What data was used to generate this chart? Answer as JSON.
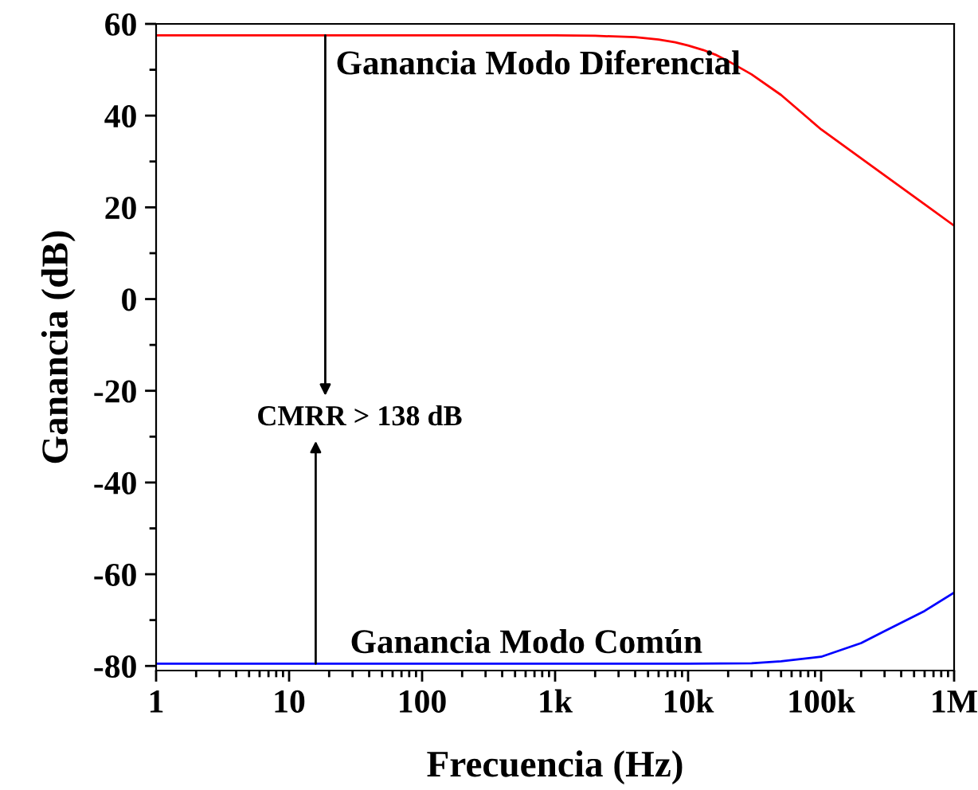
{
  "chart_data": {
    "type": "line",
    "xlabel": "Frecuencia (Hz)",
    "ylabel": "Ganancia (dB)",
    "log": "x",
    "xlim": [
      1,
      1000000
    ],
    "xticks": [
      {
        "value": 1,
        "label": "1"
      },
      {
        "value": 10,
        "label": "10"
      },
      {
        "value": 100,
        "label": "100"
      },
      {
        "value": 1000,
        "label": "1k"
      },
      {
        "value": 10000,
        "label": "10k"
      },
      {
        "value": 100000,
        "label": "100k"
      },
      {
        "value": 1000000,
        "label": "1M"
      }
    ],
    "ylim": [
      -81,
      60
    ],
    "yticks": [
      -80,
      -60,
      -40,
      -20,
      0,
      20,
      40,
      60
    ],
    "grid": false,
    "series": [
      {
        "color": "#ff0000",
        "x": [
          1,
          10,
          100,
          1000,
          2000,
          4000,
          6000,
          8000,
          10000,
          13000,
          16000,
          20000,
          30000,
          50000,
          100000,
          300000,
          1000000
        ],
        "values": [
          57.5,
          57.5,
          57.5,
          57.5,
          57.4,
          57.1,
          56.6,
          56.0,
          55.3,
          54.3,
          53.3,
          51.9,
          49,
          44.5,
          37,
          27,
          16
        ]
      },
      {
        "color": "#0000ff",
        "x": [
          1,
          10,
          100,
          1000,
          10000,
          30000,
          50000,
          100000,
          200000,
          300000,
          600000,
          1000000
        ],
        "values": [
          -79.5,
          -79.5,
          -79.5,
          -79.5,
          -79.5,
          -79.4,
          -79,
          -78,
          -75,
          -72.4,
          -68,
          -64
        ]
      }
    ],
    "annotations": [
      "Ganancia Modo Diferencial",
      "CMRR > 138 dB",
      "Ganancia Modo Común"
    ]
  }
}
